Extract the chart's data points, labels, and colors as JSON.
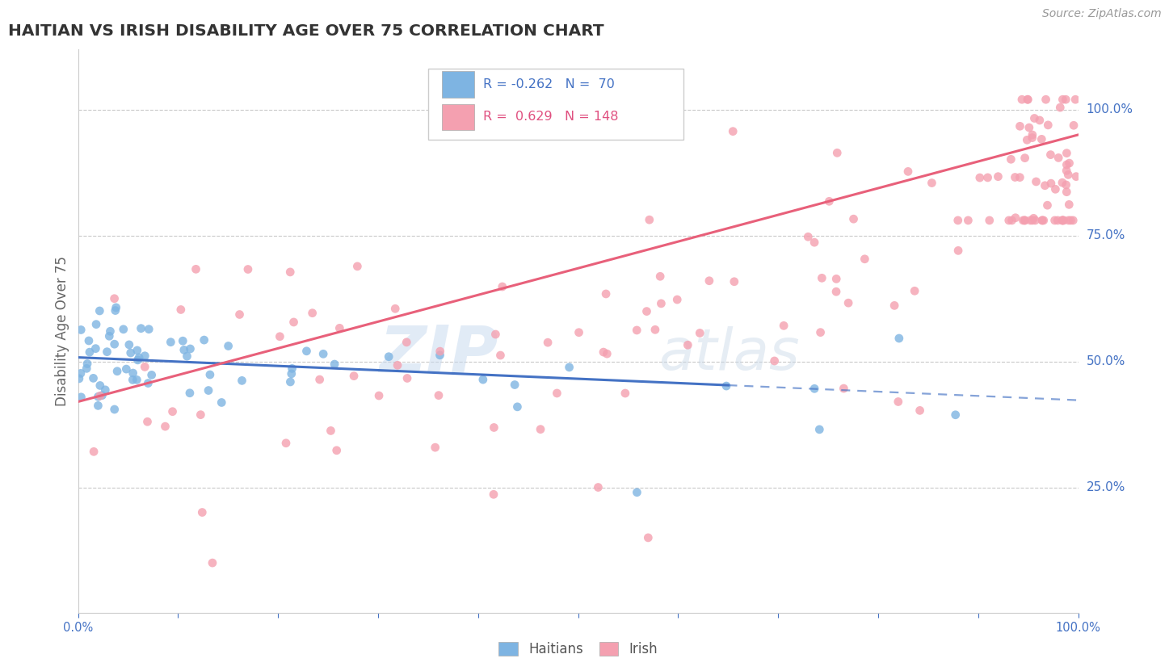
{
  "title": "HAITIAN VS IRISH DISABILITY AGE OVER 75 CORRELATION CHART",
  "source": "Source: ZipAtlas.com",
  "ylabel": "Disability Age Over 75",
  "legend_haitian": "Haitians",
  "legend_irish": "Irish",
  "R_haitian": -0.262,
  "N_haitian": 70,
  "R_irish": 0.629,
  "N_irish": 148,
  "color_haitian": "#7EB4E2",
  "color_irish": "#F4A0B0",
  "color_haitian_line": "#4472C4",
  "color_irish_line": "#E8607A",
  "watermark_zip": "ZIP",
  "watermark_atlas": "atlas",
  "ytick_labels": [
    "100.0%",
    "75.0%",
    "50.0%",
    "25.0%"
  ],
  "ytick_values": [
    1.0,
    0.75,
    0.5,
    0.25
  ],
  "xlim": [
    0.0,
    1.0
  ],
  "ylim": [
    0.0,
    1.12
  ]
}
